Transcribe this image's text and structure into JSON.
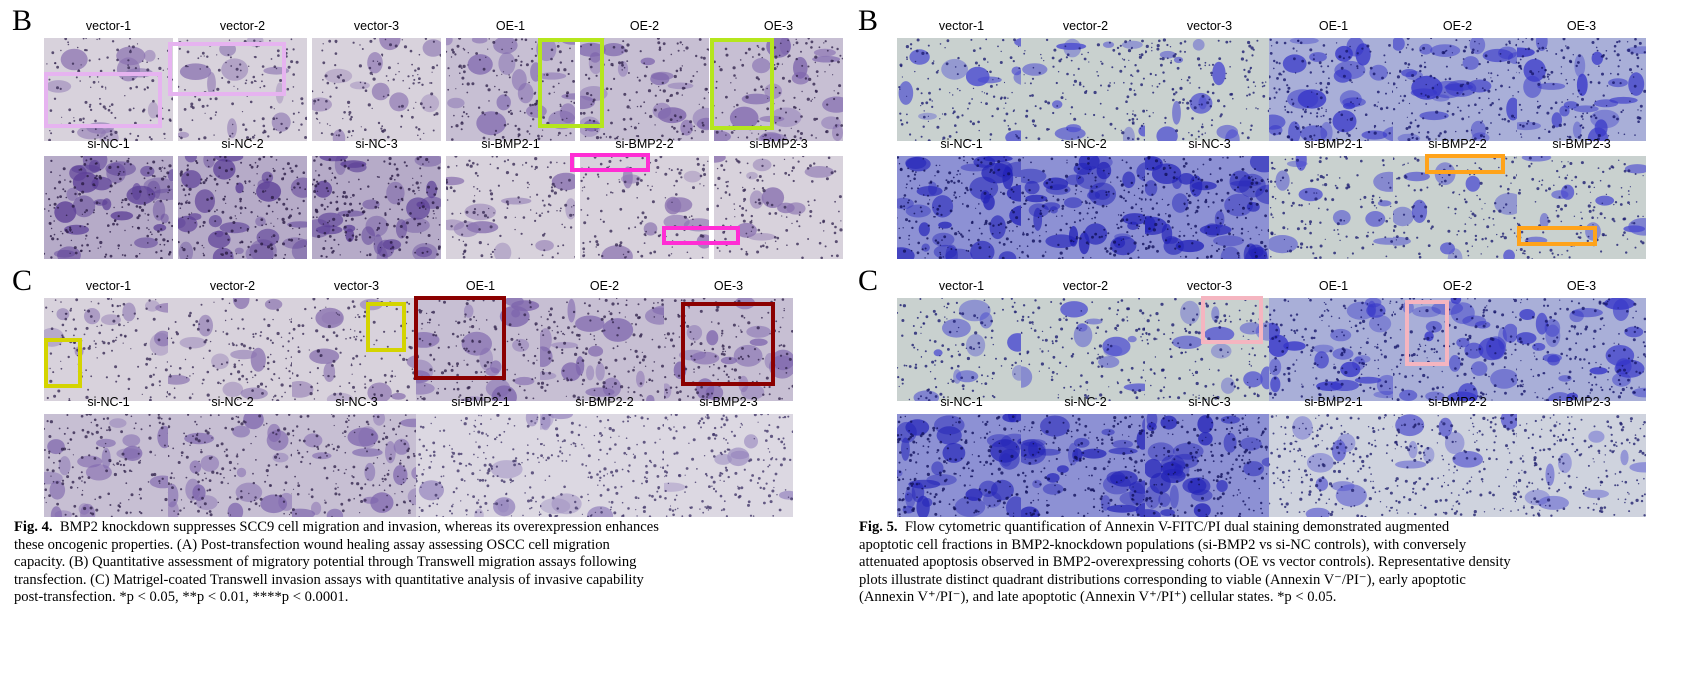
{
  "figure4": {
    "panel_b": {
      "letter": "B",
      "top_labels": [
        "vector-1",
        "vector-2",
        "vector-3",
        "OE-1",
        "OE-2",
        "OE-3"
      ],
      "bottom_labels": [
        "si-NC-1",
        "si-NC-2",
        "si-NC-3",
        "si-BMP2-1",
        "si-BMP2-2",
        "si-BMP2-3"
      ]
    },
    "panel_c": {
      "letter": "C",
      "top_labels": [
        "vector-1",
        "vector-2",
        "vector-3",
        "OE-1",
        "OE-2",
        "OE-3"
      ],
      "bottom_labels": [
        "si-NC-1",
        "si-NC-2",
        "si-NC-3",
        "si-BMP2-1",
        "si-BMP2-2",
        "si-BMP2-3"
      ]
    },
    "caption_label": "Fig. 4.",
    "caption_lines": [
      "BMP2 knockdown suppresses SCC9 cell migration and invasion, whereas its overexpression enhances",
      "these oncogenic properties. (A) Post-transfection wound healing assay assessing OSCC cell migration",
      "capacity. (B) Quantitative assessment of migratory potential through Transwell migration assays following",
      "transfection. (C) Matrigel-coated Transwell invasion assays with quantitative analysis of invasive capability",
      "post-transfection. *p < 0.05, **p < 0.01, ****p < 0.0001."
    ]
  },
  "figure5": {
    "panel_b": {
      "letter": "B",
      "top_labels": [
        "vector-1",
        "vector-2",
        "vector-3",
        "OE-1",
        "OE-2",
        "OE-3"
      ],
      "bottom_labels": [
        "si-NC-1",
        "si-NC-2",
        "si-NC-3",
        "si-BMP2-1",
        "si-BMP2-2",
        "si-BMP2-3"
      ]
    },
    "panel_c": {
      "letter": "C",
      "top_labels": [
        "vector-1",
        "vector-2",
        "vector-3",
        "OE-1",
        "OE-2",
        "OE-3"
      ],
      "bottom_labels": [
        "si-NC-1",
        "si-NC-2",
        "si-NC-3",
        "si-BMP2-1",
        "si-BMP2-2",
        "si-BMP2-3"
      ]
    },
    "caption_label": "Fig. 5.",
    "caption_lines": [
      "Flow cytometric quantification of Annexin V-FITC/PI dual staining demonstrated augmented",
      "apoptotic cell fractions in BMP2-knockdown populations (si-BMP2 vs si-NC controls), with conversely",
      "attenuated apoptosis observed in BMP2-overexpressing cohorts (OE vs vector controls). Representative density",
      "plots illustrate distinct quadrant distributions corresponding to viable (Annexin V⁻/PI⁻), early apoptotic",
      "(Annexin V⁺/PI⁻), and late apoptotic (Annexin V⁺/PI⁺) cellular states. *p < 0.05."
    ]
  },
  "colors": {
    "pink_box": "#e6b3f0",
    "green_box": "#b5e61d",
    "magenta_box": "#ff2dd4",
    "orange_box": "#ffa31a",
    "yellow_box": "#d4d400",
    "darkred_box": "#8b0000",
    "lightpink_box": "#f5b5c0"
  }
}
